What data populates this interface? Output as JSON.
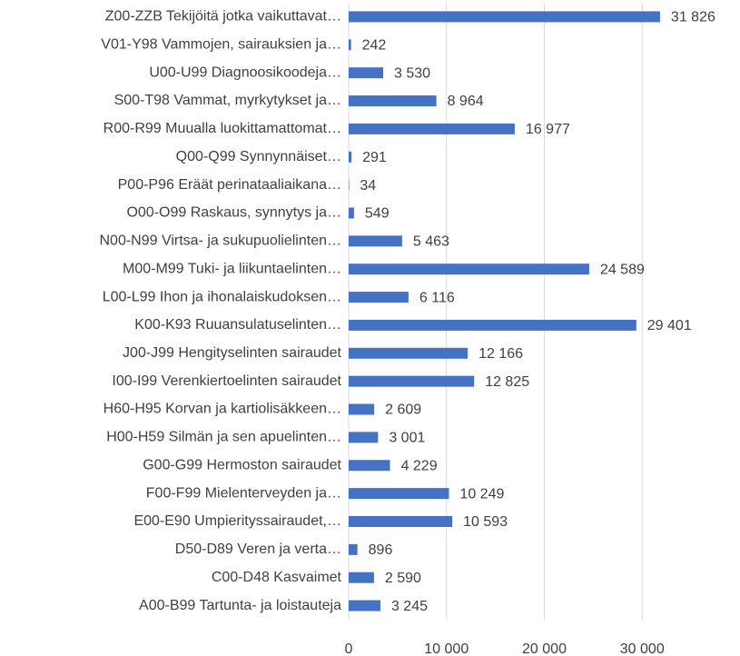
{
  "chart_data": {
    "type": "barh",
    "categories": [
      "Z00-ZZB Tekijöitä jotka vaikuttavat…",
      "V01-Y98 Vammojen, sairauksien ja…",
      "U00-U99 Diagnoosikoodeja…",
      "S00-T98 Vammat, myrkytykset ja…",
      "R00-R99 Muualla luokittamattomat…",
      "Q00-Q99 Synnynnäiset…",
      "P00-P96 Eräät perinataaliaikana…",
      "O00-O99 Raskaus, synnytys ja…",
      "N00-N99 Virtsa- ja sukupuolielinten…",
      "M00-M99 Tuki- ja liikuntaelinten…",
      "L00-L99 Ihon ja ihonalaiskudoksen…",
      "K00-K93 Ruuansulatuselinten…",
      "J00-J99 Hengityselinten sairaudet",
      "I00-I99 Verenkiertoelinten sairaudet",
      "H60-H95 Korvan ja kartiolisäkkeen…",
      "H00-H59 Silmän ja sen apuelinten…",
      "G00-G99 Hermoston sairaudet",
      "F00-F99 Mielenterveyden ja…",
      "E00-E90 Umpierityssairaudet,…",
      "D50-D89 Veren ja verta…",
      "C00-D48 Kasvaimet",
      "A00-B99 Tartunta- ja loistauteja"
    ],
    "values": [
      31826,
      242,
      3530,
      8964,
      16977,
      291,
      34,
      549,
      5463,
      24589,
      6116,
      29401,
      12166,
      12825,
      2609,
      3001,
      4229,
      10249,
      10593,
      896,
      2590,
      3245
    ],
    "value_labels": [
      "31 826",
      "242",
      "3 530",
      "8 964",
      "16 977",
      "291",
      "34",
      "549",
      "5 463",
      "24 589",
      "6 116",
      "29 401",
      "12 166",
      "12 825",
      "2 609",
      "3 001",
      "4 229",
      "10 249",
      "10 593",
      "896",
      "2 590",
      "3 245"
    ],
    "color": "#4472c4",
    "xlim": [
      0,
      40000
    ],
    "xticks": [
      0,
      {
        "value": 10000,
        "label": "10 000"
      },
      {
        "value": 20000,
        "label": "20 000"
      },
      {
        "value": 30000,
        "label": "30 000"
      }
    ],
    "grid": true
  }
}
